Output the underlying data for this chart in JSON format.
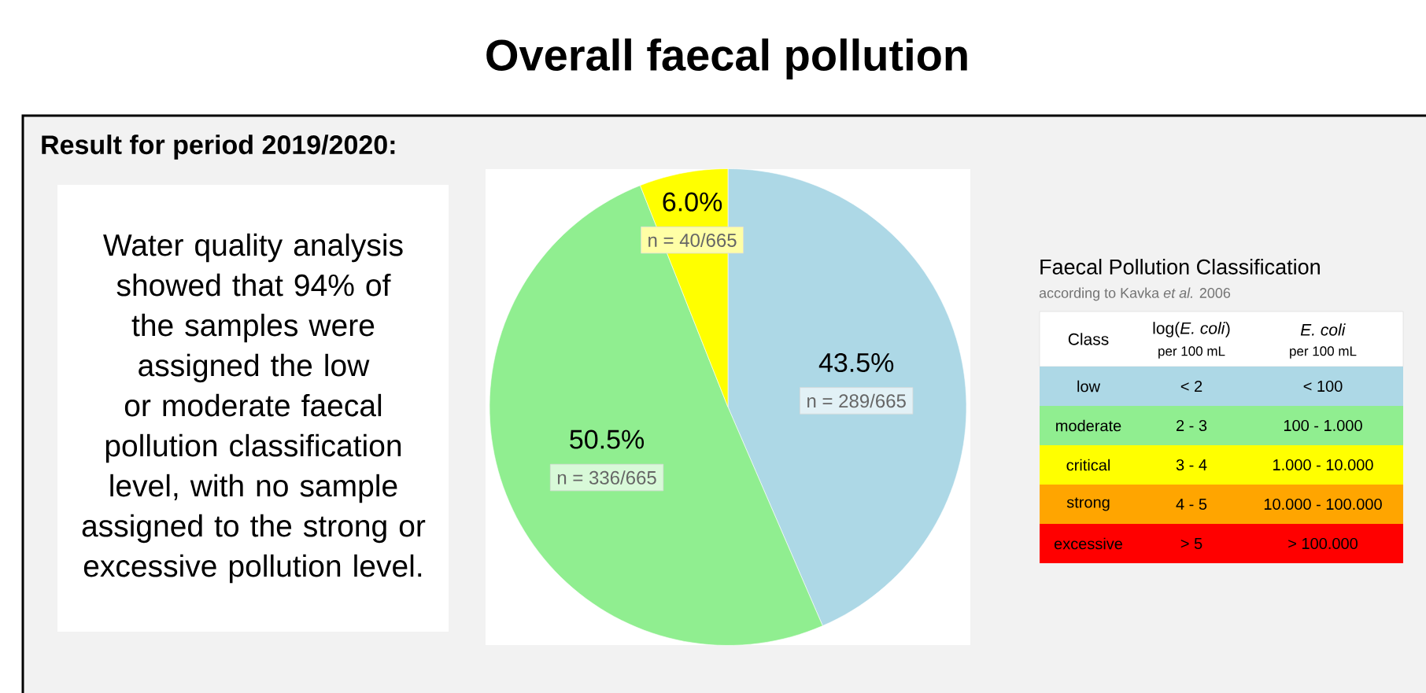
{
  "chart_data": [
    {
      "type": "other",
      "title": "Overall faecal pollution",
      "subtitle": "Result for period 2019/2020:",
      "annotations": [
        "Water quality analysis showed that 94% of the samples were assigned the low or moderate faecal pollution classification level, with no sample assigned to the strong or excessive pollution level."
      ]
    },
    {
      "type": "pie",
      "categories": [
        null,
        null,
        null
      ],
      "values": [
        43.5,
        50.5,
        6.0
      ],
      "colors": [
        "#add8e6",
        "#90ee90",
        "#ffff00"
      ],
      "value_labels": [
        "43.5%",
        "50.5%",
        "6.0%"
      ],
      "annotations": [
        "n = 289/665",
        "n = 336/665",
        "n = 40/665"
      ]
    },
    {
      "type": "other",
      "title": "Faecal Pollution Classification",
      "subtitle": "according to Kavka *et al.* 2006",
      "categories": [
        "Class",
        "log(*E. coli*)",
        "*E. coli*"
      ],
      "cell_labels": [
        [
          null,
          "per 100 mL",
          "per 100 mL"
        ],
        [
          "low",
          "< 2",
          "< 100"
        ],
        [
          "moderate",
          "2 - 3",
          "100 - 1.000"
        ],
        [
          "critical",
          "3 - 4",
          "1.000 - 10.000"
        ],
        [
          "strong",
          "4 - 5",
          "10.000 - 100.000"
        ],
        [
          "excessive",
          "> 5",
          "> 100.000"
        ]
      ],
      "colors": [
        "#ffffff",
        "#add8e6",
        "#90ee90",
        "#ffff00",
        "#ffa500",
        "#ff0000"
      ]
    }
  ]
}
